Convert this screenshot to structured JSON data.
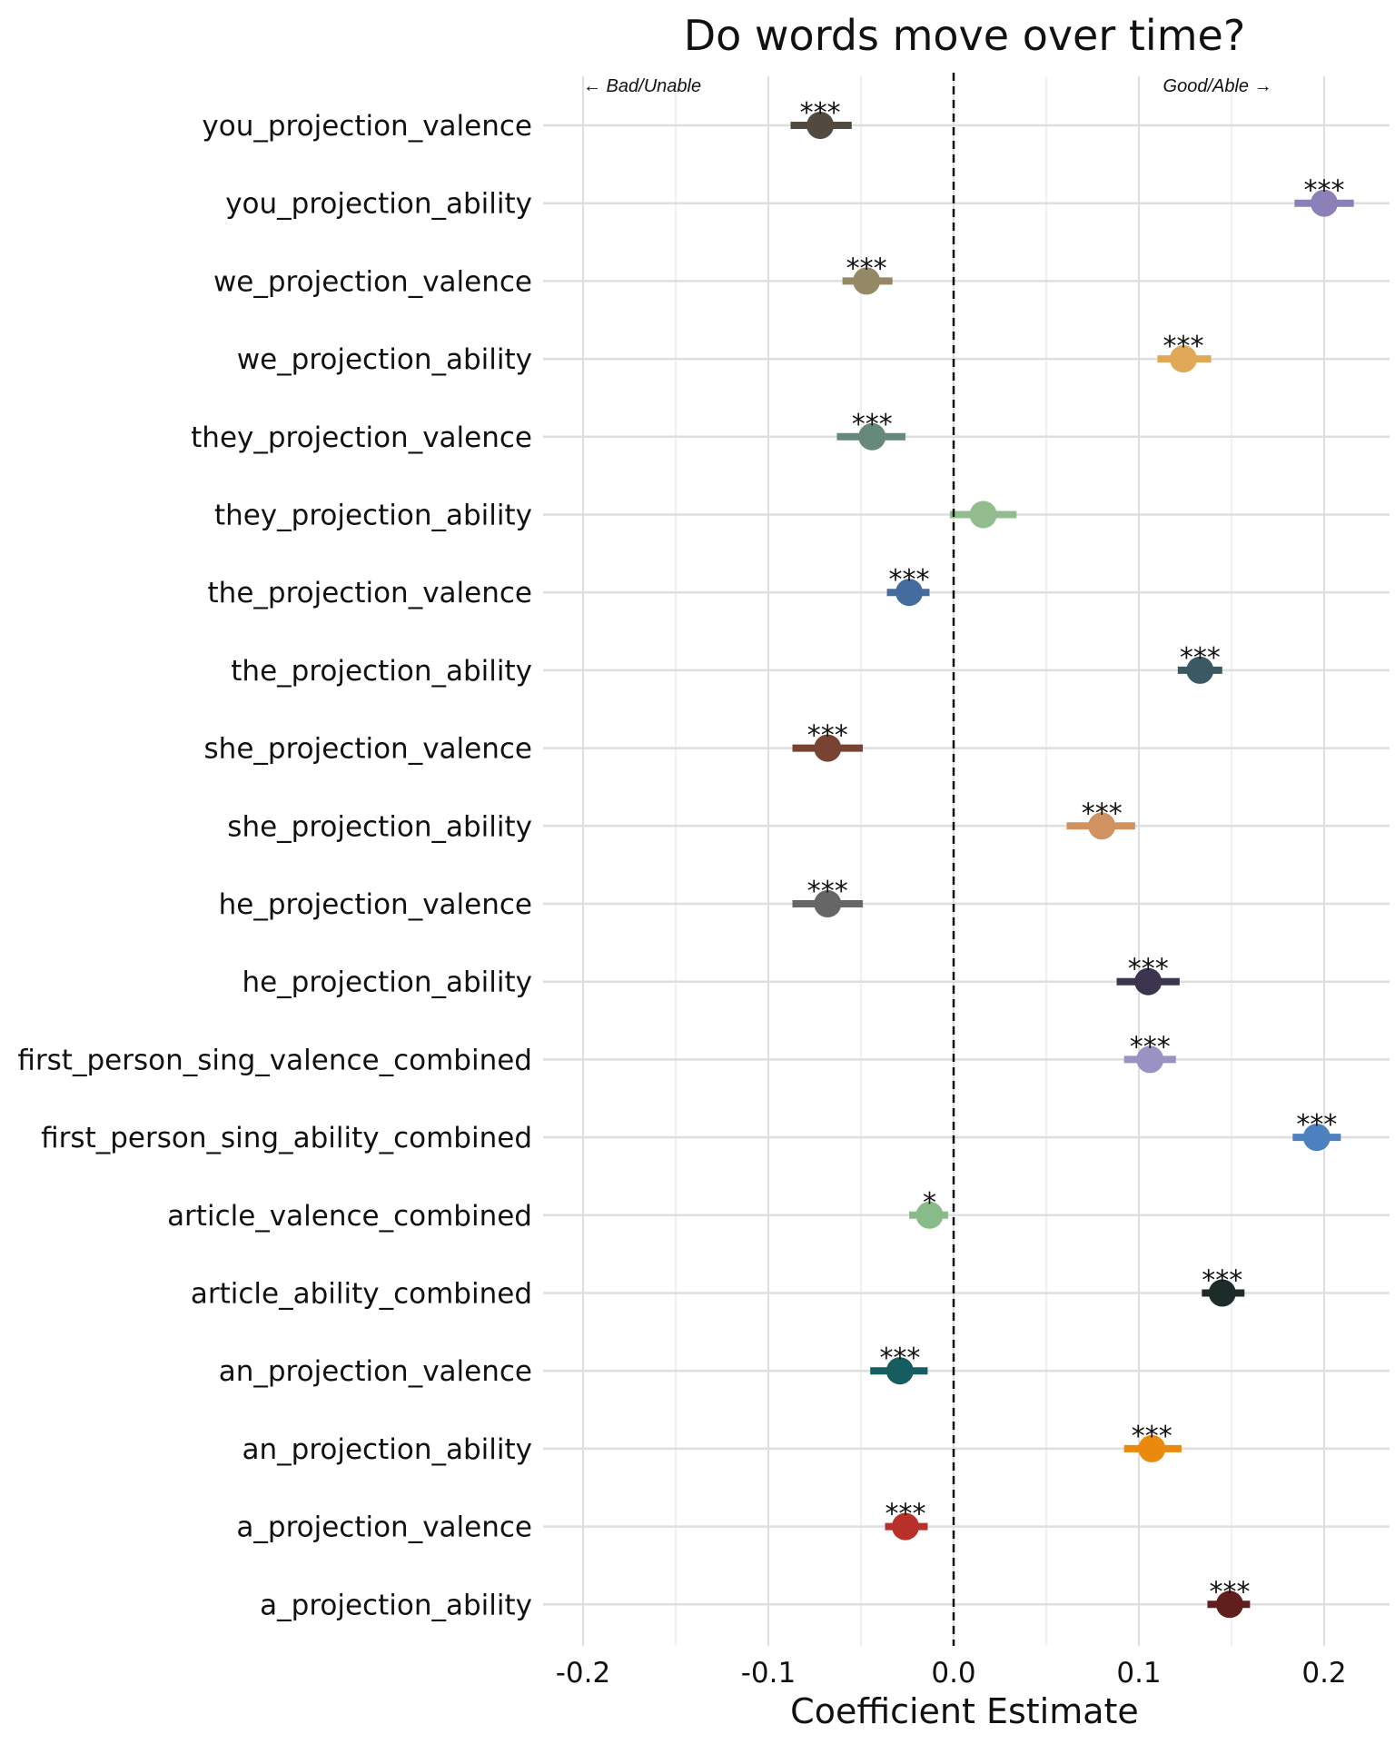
{
  "chart_data": {
    "type": "dot-and-whisker",
    "title": "Do words move over time?",
    "xlabel": "Coefficient Estimate",
    "ylabel": "",
    "xlim": [
      -0.22,
      0.235
    ],
    "xticks": [
      "-0.2",
      "-0.1",
      "0.0",
      "0.1",
      "0.2"
    ],
    "xtick_values": [
      -0.2,
      -0.1,
      0.0,
      0.1,
      0.2
    ],
    "minor_grid": [
      -0.15,
      -0.05,
      0.05,
      0.15
    ],
    "reference_line": 0.0,
    "annotation_left": "← Bad/Unable",
    "annotation_right": "Good/Able →",
    "series": [
      {
        "name": "you_projection_valence",
        "estimate": -0.072,
        "lower": -0.088,
        "upper": -0.055,
        "sig": "***",
        "color": "#524A40"
      },
      {
        "name": "you_projection_ability",
        "estimate": 0.2,
        "lower": 0.184,
        "upper": 0.216,
        "sig": "***",
        "color": "#8B80B8"
      },
      {
        "name": "we_projection_valence",
        "estimate": -0.047,
        "lower": -0.06,
        "upper": -0.033,
        "sig": "***",
        "color": "#958865"
      },
      {
        "name": "we_projection_ability",
        "estimate": 0.124,
        "lower": 0.11,
        "upper": 0.139,
        "sig": "***",
        "color": "#E0A958"
      },
      {
        "name": "they_projection_valence",
        "estimate": -0.044,
        "lower": -0.063,
        "upper": -0.026,
        "sig": "***",
        "color": "#66897A"
      },
      {
        "name": "they_projection_ability",
        "estimate": 0.016,
        "lower": -0.002,
        "upper": 0.034,
        "sig": "",
        "color": "#93BC8E"
      },
      {
        "name": "the_projection_valence",
        "estimate": -0.024,
        "lower": -0.036,
        "upper": -0.013,
        "sig": "***",
        "color": "#456C9E"
      },
      {
        "name": "the_projection_ability",
        "estimate": 0.133,
        "lower": 0.121,
        "upper": 0.145,
        "sig": "***",
        "color": "#3A5964"
      },
      {
        "name": "she_projection_valence",
        "estimate": -0.068,
        "lower": -0.087,
        "upper": -0.049,
        "sig": "***",
        "color": "#784333"
      },
      {
        "name": "she_projection_ability",
        "estimate": 0.08,
        "lower": 0.061,
        "upper": 0.098,
        "sig": "***",
        "color": "#CF9260"
      },
      {
        "name": "he_projection_valence",
        "estimate": -0.068,
        "lower": -0.087,
        "upper": -0.049,
        "sig": "***",
        "color": "#666666"
      },
      {
        "name": "he_projection_ability",
        "estimate": 0.105,
        "lower": 0.088,
        "upper": 0.122,
        "sig": "***",
        "color": "#3B354F"
      },
      {
        "name": "first_person_sing_valence_combined",
        "estimate": 0.106,
        "lower": 0.092,
        "upper": 0.12,
        "sig": "***",
        "color": "#9A92C2"
      },
      {
        "name": "first_person_sing_ability_combined",
        "estimate": 0.196,
        "lower": 0.183,
        "upper": 0.209,
        "sig": "***",
        "color": "#4D80BE"
      },
      {
        "name": "article_valence_combined",
        "estimate": -0.013,
        "lower": -0.024,
        "upper": -0.003,
        "sig": "*",
        "color": "#88BB8A"
      },
      {
        "name": "article_ability_combined",
        "estimate": 0.145,
        "lower": 0.134,
        "upper": 0.157,
        "sig": "***",
        "color": "#1D2B29"
      },
      {
        "name": "an_projection_valence",
        "estimate": -0.029,
        "lower": -0.045,
        "upper": -0.014,
        "sig": "***",
        "color": "#165D60"
      },
      {
        "name": "an_projection_ability",
        "estimate": 0.107,
        "lower": 0.092,
        "upper": 0.123,
        "sig": "***",
        "color": "#E9890E"
      },
      {
        "name": "a_projection_valence",
        "estimate": -0.026,
        "lower": -0.037,
        "upper": -0.014,
        "sig": "***",
        "color": "#B8302A"
      },
      {
        "name": "a_projection_ability",
        "estimate": 0.149,
        "lower": 0.137,
        "upper": 0.16,
        "sig": "***",
        "color": "#601F1C"
      }
    ]
  }
}
